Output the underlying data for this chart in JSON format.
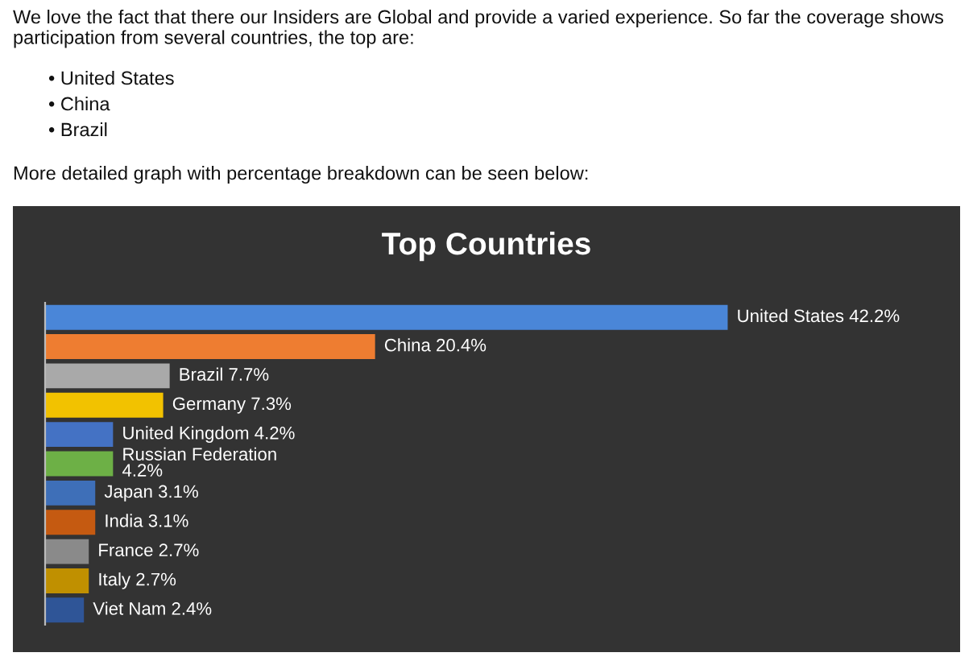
{
  "chart_data": {
    "type": "bar",
    "orientation": "horizontal",
    "title": "Top Countries",
    "categories": [
      null,
      null,
      null,
      null,
      null,
      null,
      null,
      null,
      null,
      null,
      null
    ],
    "values": [
      42.2,
      20.4,
      7.7,
      7.3,
      4.2,
      4.2,
      3.1,
      3.1,
      2.7,
      2.7,
      2.4
    ],
    "value_labels": [
      "United States 42.2%",
      "China 20.4%",
      "Brazil 7.7%",
      "Germany 7.3%",
      "United Kingdom 4.2%",
      "Russian Federation\n4.2%",
      "Japan 3.1%",
      "India 3.1%",
      "France 2.7%",
      "Italy 2.7%",
      "Viet Nam 2.4%"
    ],
    "colors": [
      "#4a86d8",
      "#ee7d31",
      "#a9a9a9",
      "#f2c200",
      "#4472c4",
      "#6db046",
      "#3e6fb8",
      "#c55a11",
      "#8a8a8a",
      "#c09000",
      "#2f5597"
    ],
    "legend": false,
    "annotations": [
      "We love the fact that there our Insiders are Global and provide a varied experience. So far the coverage shows participation from several countries, the top are:",
      "• United States",
      "• China",
      "• Brazil",
      "More detailed graph with percentage breakdown can be seen below:"
    ]
  }
}
